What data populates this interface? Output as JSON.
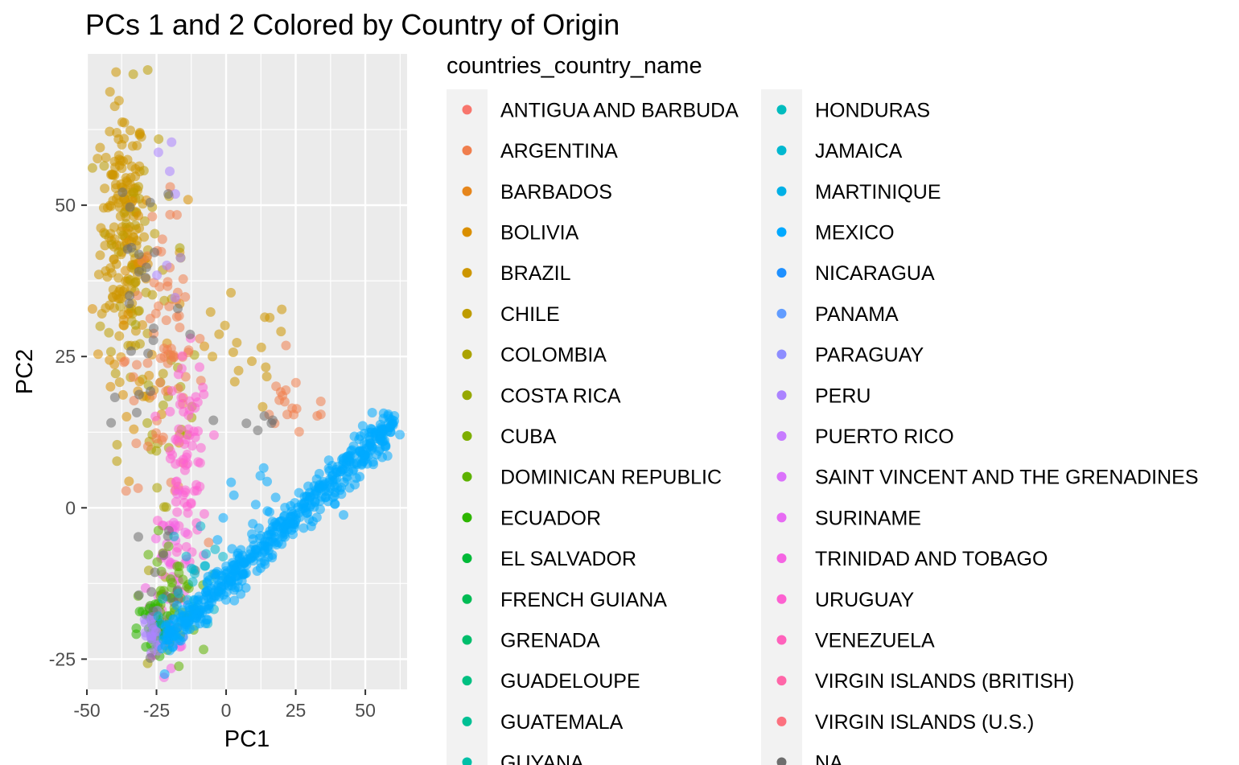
{
  "chart_data": {
    "type": "scatter",
    "title": "PCs 1 and 2 Colored by Country of Origin",
    "xlabel": "PC1",
    "ylabel": "PC2",
    "xlim": [
      -50,
      65
    ],
    "ylim": [
      -30,
      75
    ],
    "x_ticks": [
      -50,
      -25,
      0,
      25,
      50
    ],
    "x_tick_labels": [
      "-50",
      "-25",
      "0",
      "25",
      "50"
    ],
    "y_ticks": [
      -25,
      0,
      25,
      50
    ],
    "y_tick_labels": [
      "-25",
      "0",
      "25",
      "50"
    ],
    "grid": true,
    "legend": {
      "title": "countries_country_name",
      "placement": "right",
      "columns": 2,
      "entries": [
        {
          "name": "ANTIGUA AND BARBUDA",
          "color": "#F8766D"
        },
        {
          "name": "ARGENTINA",
          "color": "#F07F4E"
        },
        {
          "name": "BARBADOS",
          "color": "#E6861C"
        },
        {
          "name": "BOLIVIA",
          "color": "#DA8F00"
        },
        {
          "name": "BRAZIL",
          "color": "#CD9600"
        },
        {
          "name": "CHILE",
          "color": "#BE9C00"
        },
        {
          "name": "COLOMBIA",
          "color": "#ABA300"
        },
        {
          "name": "COSTA RICA",
          "color": "#96A800"
        },
        {
          "name": "CUBA",
          "color": "#7DAE00"
        },
        {
          "name": "DOMINICAN REPUBLIC",
          "color": "#5DB200"
        },
        {
          "name": "ECUADOR",
          "color": "#2EB600"
        },
        {
          "name": "EL SALVADOR",
          "color": "#00BA38"
        },
        {
          "name": "FRENCH GUIANA",
          "color": "#00BC55"
        },
        {
          "name": "GRENADA",
          "color": "#00BE6C"
        },
        {
          "name": "GUADELOUPE",
          "color": "#00C081"
        },
        {
          "name": "GUATEMALA",
          "color": "#00C094"
        },
        {
          "name": "GUYANA",
          "color": "#00C0A7"
        },
        {
          "name": "HONDURAS",
          "color": "#00BCBE"
        },
        {
          "name": "JAMAICA",
          "color": "#00B8D0"
        },
        {
          "name": "MARTINIQUE",
          "color": "#00B0E6"
        },
        {
          "name": "MEXICO",
          "color": "#00A9FF"
        },
        {
          "name": "NICARAGUA",
          "color": "#1E90FF"
        },
        {
          "name": "PANAMA",
          "color": "#619CFF"
        },
        {
          "name": "PARAGUAY",
          "color": "#8D8DFF"
        },
        {
          "name": "PERU",
          "color": "#AB83FF"
        },
        {
          "name": "PUERTO RICO",
          "color": "#C77CFF"
        },
        {
          "name": "SAINT VINCENT AND THE GRENADINES",
          "color": "#DB72FB"
        },
        {
          "name": "SURINAME",
          "color": "#E76BF3"
        },
        {
          "name": "TRINIDAD AND TOBAGO",
          "color": "#F564E3"
        },
        {
          "name": "URUGUAY",
          "color": "#FD61D1"
        },
        {
          "name": "VENEZUELA",
          "color": "#FF62BC"
        },
        {
          "name": "VIRGIN ISLANDS (BRITISH)",
          "color": "#FF66A8"
        },
        {
          "name": "VIRGIN ISLANDS (U.S.)",
          "color": "#FC717F"
        },
        {
          "name": "NA",
          "color": "#6E6E6E"
        }
      ]
    },
    "clusters": [
      {
        "group": "BRAZIL",
        "n": 160,
        "type": "gauss",
        "cx": -37,
        "cy": 47,
        "sx": 4,
        "sy": 10
      },
      {
        "group": "CHILE",
        "n": 60,
        "type": "gauss",
        "cx": -33,
        "cy": 40,
        "sx": 6,
        "sy": 14
      },
      {
        "group": "BOLIVIA",
        "n": 40,
        "type": "gauss",
        "cx": -30,
        "cy": 30,
        "sx": 8,
        "sy": 12
      },
      {
        "group": "COLOMBIA",
        "n": 30,
        "type": "gauss",
        "cx": -22,
        "cy": 15,
        "sx": 6,
        "sy": 12
      },
      {
        "group": "ARGENTINA",
        "n": 70,
        "type": "gauss",
        "cx": -22,
        "cy": 25,
        "sx": 7,
        "sy": 12
      },
      {
        "group": "ARGENTINA",
        "n": 18,
        "type": "gauss",
        "cx": 25,
        "cy": 17,
        "sx": 8,
        "sy": 3
      },
      {
        "group": "BRAZIL",
        "n": 18,
        "type": "gauss",
        "cx": 4,
        "cy": 25,
        "sx": 10,
        "sy": 5
      },
      {
        "group": "URUGUAY",
        "n": 80,
        "type": "gauss",
        "cx": -14,
        "cy": 6,
        "sx": 4,
        "sy": 9
      },
      {
        "group": "TRINIDAD AND TOBAGO",
        "n": 50,
        "type": "gauss",
        "cx": -20,
        "cy": -12,
        "sx": 4,
        "sy": 6
      },
      {
        "group": "DOMINICAN REPUBLIC",
        "n": 40,
        "type": "gauss",
        "cx": -20,
        "cy": -15,
        "sx": 5,
        "sy": 5
      },
      {
        "group": "ECUADOR",
        "n": 40,
        "type": "gauss",
        "cx": -26,
        "cy": -20,
        "sx": 3,
        "sy": 2.5
      },
      {
        "group": "PERU",
        "n": 25,
        "type": "gauss",
        "cx": -26,
        "cy": -21,
        "sx": 3,
        "sy": 3
      },
      {
        "group": "PERU",
        "n": 8,
        "type": "gauss",
        "cx": -18,
        "cy": 48,
        "sx": 4,
        "sy": 10
      },
      {
        "group": "NA",
        "n": 25,
        "type": "gauss",
        "cx": -30,
        "cy": 38,
        "sx": 8,
        "sy": 15
      },
      {
        "group": "NA",
        "n": 15,
        "type": "gauss",
        "cx": -20,
        "cy": -15,
        "sx": 6,
        "sy": 6
      },
      {
        "group": "NA",
        "n": 6,
        "type": "gauss",
        "cx": 10,
        "cy": 14,
        "sx": 5,
        "sy": 2
      },
      {
        "group": "JAMAICA",
        "n": 30,
        "type": "gauss",
        "cx": -12,
        "cy": -12,
        "sx": 5,
        "sy": 5
      },
      {
        "group": "MEXICO",
        "n": 500,
        "type": "line",
        "x0": -22,
        "y0": -22,
        "x1": 60,
        "y1": 14,
        "jitter": 1.6
      },
      {
        "group": "MEXICO",
        "n": 15,
        "type": "gauss",
        "cx": 15,
        "cy": 0,
        "sx": 12,
        "sy": 6
      }
    ]
  }
}
